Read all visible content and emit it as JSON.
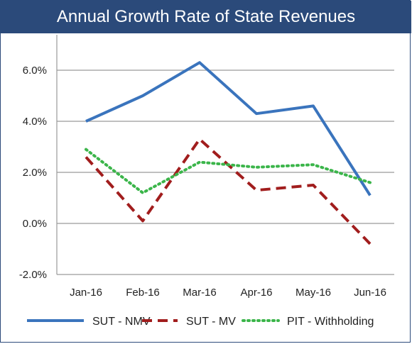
{
  "chart_data": {
    "type": "line",
    "title": "Annual Growth Rate of State Revenues",
    "categories": [
      "Jan-16",
      "Feb-16",
      "Mar-16",
      "Apr-16",
      "May-16",
      "Jun-16"
    ],
    "ylim": [
      -2.0,
      6.0
    ],
    "yticks": [
      "-2.0%",
      "0.0%",
      "2.0%",
      "4.0%",
      "6.0%"
    ],
    "ytick_values": [
      -2,
      0,
      2,
      4,
      6
    ],
    "grid": true,
    "legend_position": "bottom",
    "series": [
      {
        "name": "SUT - NMV",
        "values": [
          4.0,
          5.0,
          6.3,
          4.3,
          4.6,
          1.1
        ],
        "color": "#3a74bd",
        "style": "solid"
      },
      {
        "name": "SUT - MV",
        "values": [
          2.6,
          0.1,
          3.3,
          1.3,
          1.5,
          -0.8
        ],
        "color": "#a11d1d",
        "style": "dashed"
      },
      {
        "name": "PIT - Withholding",
        "values": [
          2.9,
          1.2,
          2.4,
          2.2,
          2.3,
          1.6
        ],
        "color": "#3bb54a",
        "style": "dotted"
      }
    ]
  }
}
